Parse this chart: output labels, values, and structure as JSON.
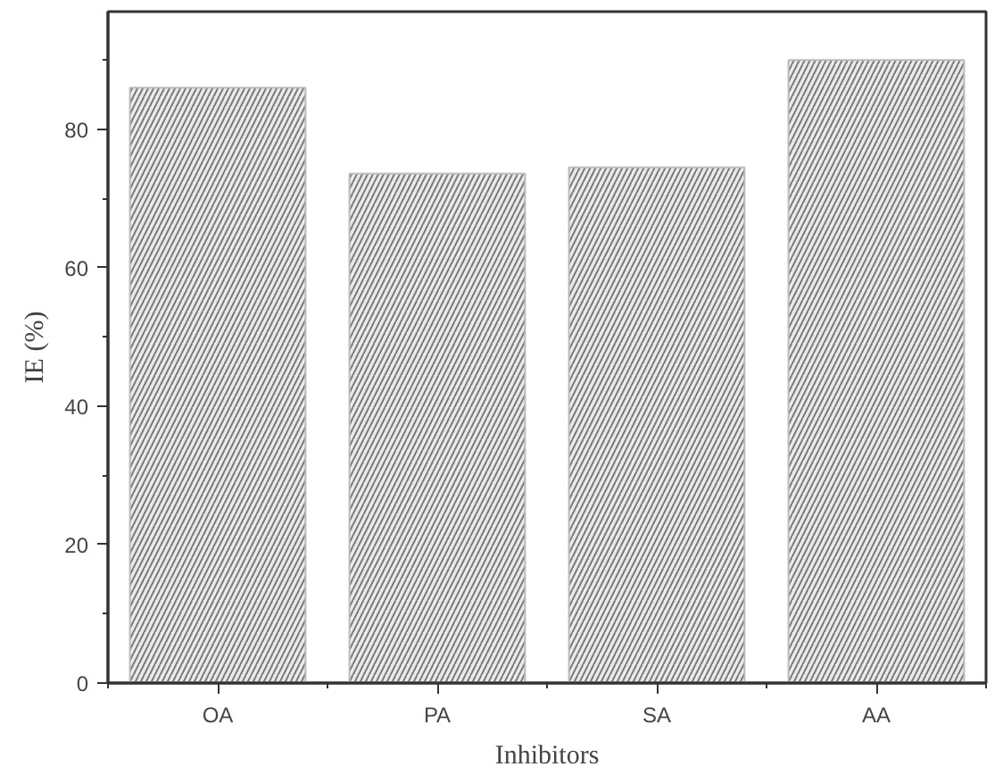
{
  "chart_data": {
    "type": "bar",
    "xlabel": "Inhibitors",
    "ylabel": "IE (%)",
    "categories": [
      "OA",
      "PA",
      "SA",
      "AA"
    ],
    "values": [
      86.0,
      73.6,
      74.5,
      90.0
    ],
    "color": "#7a7a7a",
    "ylim": [
      0,
      97
    ],
    "yticks": [
      0,
      {
        "value": 10,
        "label": null
      },
      20,
      {
        "value": 30,
        "label": null
      },
      40,
      {
        "value": 50,
        "label": null
      },
      60,
      {
        "value": 70,
        "label": null
      },
      80,
      {
        "value": 90,
        "label": null
      }
    ],
    "grid": false
  }
}
